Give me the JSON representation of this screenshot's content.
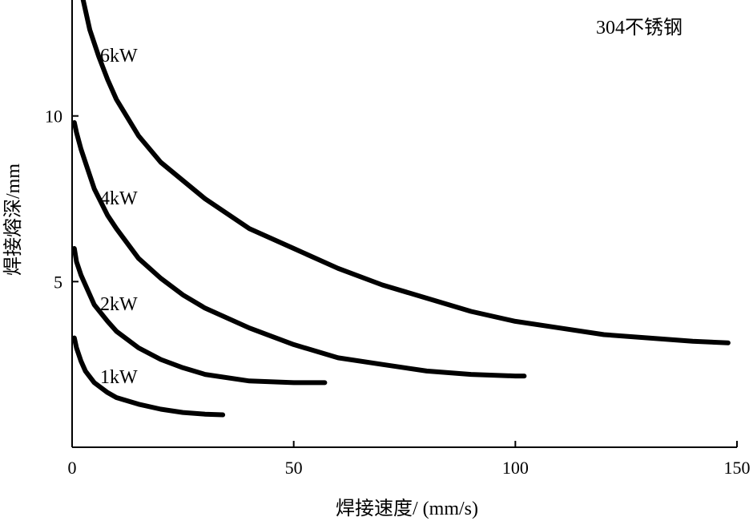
{
  "chart_data": {
    "type": "line",
    "title": "",
    "annotation": "304不锈钢",
    "xlabel": "焊接速度/ (mm/s)",
    "ylabel": "焊接熔深/mm",
    "xlim": [
      0,
      150
    ],
    "ylim": [
      0,
      13.5
    ],
    "xticks": [
      0,
      50,
      100,
      150
    ],
    "yticks": [
      5,
      10
    ],
    "grid": false,
    "series": [
      {
        "name": "6kW",
        "x": [
          2.5,
          4,
          6,
          8,
          10,
          15,
          20,
          30,
          40,
          50,
          60,
          70,
          80,
          90,
          100,
          110,
          120,
          130,
          140,
          148
        ],
        "y": [
          13.5,
          12.6,
          11.8,
          11.1,
          10.5,
          9.4,
          8.6,
          7.5,
          6.6,
          6.0,
          5.4,
          4.9,
          4.5,
          4.1,
          3.8,
          3.6,
          3.4,
          3.3,
          3.2,
          3.15
        ]
      },
      {
        "name": "4kW",
        "x": [
          0.5,
          1,
          2,
          3,
          5,
          8,
          10,
          15,
          20,
          25,
          30,
          40,
          50,
          60,
          70,
          80,
          90,
          100,
          102
        ],
        "y": [
          9.8,
          9.5,
          9.0,
          8.6,
          7.8,
          7.0,
          6.6,
          5.7,
          5.1,
          4.6,
          4.2,
          3.6,
          3.1,
          2.7,
          2.5,
          2.3,
          2.2,
          2.15,
          2.15
        ]
      },
      {
        "name": "2kW",
        "x": [
          0.5,
          1,
          2,
          3,
          5,
          8,
          10,
          15,
          20,
          25,
          30,
          40,
          50,
          57
        ],
        "y": [
          6.0,
          5.6,
          5.2,
          4.9,
          4.3,
          3.8,
          3.5,
          3.0,
          2.65,
          2.4,
          2.2,
          2.0,
          1.95,
          1.95
        ]
      },
      {
        "name": "1kW",
        "x": [
          0.5,
          1,
          2,
          3,
          5,
          8,
          10,
          15,
          20,
          25,
          30,
          34
        ],
        "y": [
          3.3,
          3.0,
          2.6,
          2.3,
          1.95,
          1.65,
          1.5,
          1.3,
          1.15,
          1.05,
          1.0,
          0.98
        ]
      }
    ]
  }
}
